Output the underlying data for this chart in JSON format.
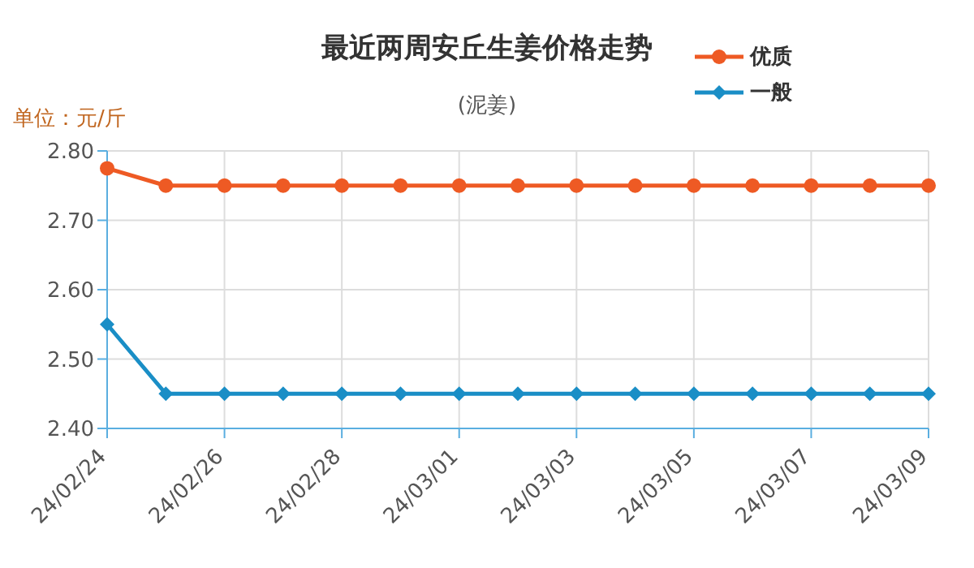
{
  "chart_data": {
    "type": "line",
    "title": "最近两周安丘生姜价格走势",
    "subtitle": "(泥姜)",
    "ylabel": "单位：元/斤",
    "categories": [
      "24/02/24",
      null,
      "24/02/26",
      null,
      "24/02/28",
      null,
      "24/03/01",
      null,
      "24/03/03",
      null,
      "24/03/05",
      null,
      "24/03/07",
      null,
      "24/03/09"
    ],
    "series": [
      {
        "name": "优质",
        "color": "#ee5a24",
        "marker": "circle",
        "values": [
          2.775,
          2.75,
          2.75,
          2.75,
          2.75,
          2.75,
          2.75,
          2.75,
          2.75,
          2.75,
          2.75,
          2.75,
          2.75,
          2.75,
          2.75
        ]
      },
      {
        "name": "一般",
        "color": "#1a8ec6",
        "marker": "diamond",
        "values": [
          2.55,
          2.45,
          2.45,
          2.45,
          2.45,
          2.45,
          2.45,
          2.45,
          2.45,
          2.45,
          2.45,
          2.45,
          2.45,
          2.45,
          2.45
        ]
      }
    ],
    "ylim": [
      2.4,
      2.8
    ],
    "yticks": [
      {
        "value": 2.4,
        "label": "2.40"
      },
      {
        "value": 2.5,
        "label": "2.50"
      },
      {
        "value": 2.6,
        "label": "2.60"
      },
      {
        "value": 2.7,
        "label": "2.70"
      },
      {
        "value": 2.8,
        "label": "2.80"
      }
    ],
    "grid": true,
    "legend": "top right"
  }
}
